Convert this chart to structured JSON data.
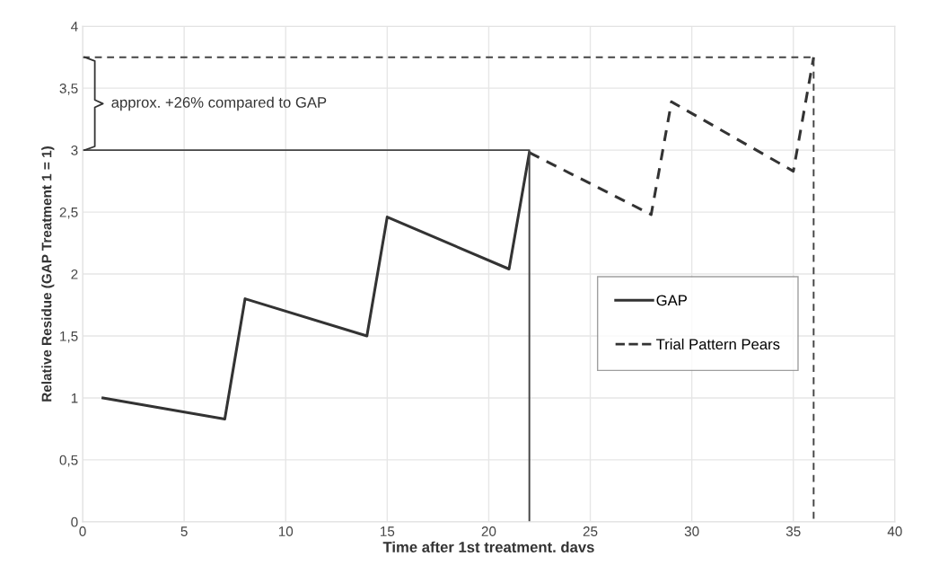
{
  "chart_data": {
    "type": "line",
    "xlabel": "Time after 1st treatment. davs",
    "ylabel": "Relative Residue (GAP Treatment 1 = 1)",
    "xlim": [
      0,
      40
    ],
    "xticks": [
      0,
      5,
      10,
      15,
      20,
      25,
      30,
      35,
      40
    ],
    "ylim": [
      0,
      4
    ],
    "yticks": [
      {
        "value": 0,
        "label": "0"
      },
      {
        "value": 0.5,
        "label": "0,5"
      },
      {
        "value": 1,
        "label": "1"
      },
      {
        "value": 1.5,
        "label": "1,5"
      },
      {
        "value": 2,
        "label": "2"
      },
      {
        "value": 2.5,
        "label": "2,5"
      },
      {
        "value": 3,
        "label": "3"
      },
      {
        "value": 3.5,
        "label": "3,5"
      },
      {
        "value": 4,
        "label": "4"
      }
    ],
    "grid": true,
    "legend": "right",
    "series": [
      {
        "name": "GAP",
        "color": "#333333",
        "line_style": "solid",
        "x": [
          1,
          7,
          8,
          14,
          15,
          21,
          22
        ],
        "values": [
          1,
          0.83,
          1.8,
          1.5,
          2.46,
          2.04,
          2.98
        ]
      },
      {
        "name": "Trial Pattern Pears",
        "color": "#333333",
        "line_style": "dashed",
        "x": [
          22,
          28,
          29,
          35,
          36
        ],
        "values": [
          2.98,
          2.48,
          3.39,
          2.83,
          3.75
        ]
      },
      {
        "color": "#444444",
        "line_style": "solid",
        "x": [
          0,
          22,
          22
        ],
        "values": [
          3,
          3,
          0
        ]
      },
      {
        "color": "#444444",
        "line_style": "dashed",
        "x": [
          0,
          36,
          36
        ],
        "values": [
          3.75,
          3.75,
          0
        ]
      }
    ],
    "annotations": [
      "approx. +26% compared to GAP"
    ]
  }
}
